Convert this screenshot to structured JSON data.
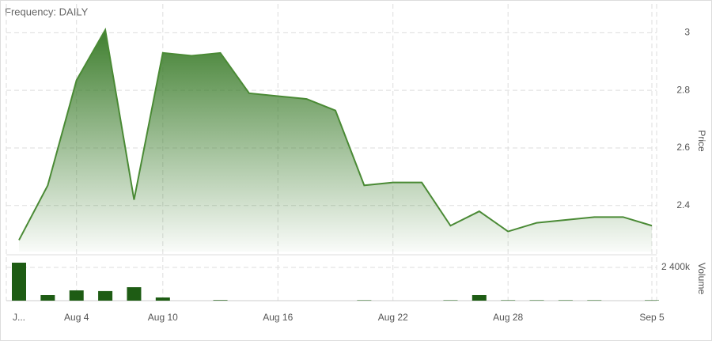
{
  "chart_data": [
    {
      "type": "area",
      "title": "Frequency: DAILY",
      "ylabel": "Price",
      "color": "#4a8a35",
      "categories": [
        "J...",
        null,
        "Aug 4",
        null,
        null,
        "Aug 10",
        null,
        null,
        null,
        "Aug 16",
        null,
        null,
        null,
        "Aug 22",
        null,
        null,
        null,
        "Aug 28",
        null,
        null,
        null,
        null,
        "Sep 5"
      ],
      "values": [
        2.28,
        2.47,
        2.835,
        3.01,
        2.42,
        2.93,
        2.92,
        2.93,
        2.79,
        2.78,
        2.77,
        2.73,
        2.47,
        2.48,
        2.48,
        2.33,
        2.38,
        2.31,
        2.34,
        2.35,
        2.36,
        2.36,
        2.33
      ],
      "ylim": [
        2.24,
        3.1
      ],
      "yticks": [
        2.4,
        2.6,
        2.8,
        3
      ],
      "grid": true
    },
    {
      "type": "bar",
      "ylabel": "Volume",
      "color": "#1e5c14",
      "values": [
        2740000,
        400000,
        740000,
        690000,
        970000,
        230000,
        0,
        40000,
        0,
        0,
        0,
        0,
        30000,
        0,
        0,
        30000,
        400000,
        30000,
        30000,
        30000,
        30000,
        0,
        30000
      ],
      "ylim": [
        0,
        3140000
      ],
      "yticks": [
        {
          "value": 2400000,
          "label": "2 400k"
        }
      ],
      "grid": true
    }
  ]
}
